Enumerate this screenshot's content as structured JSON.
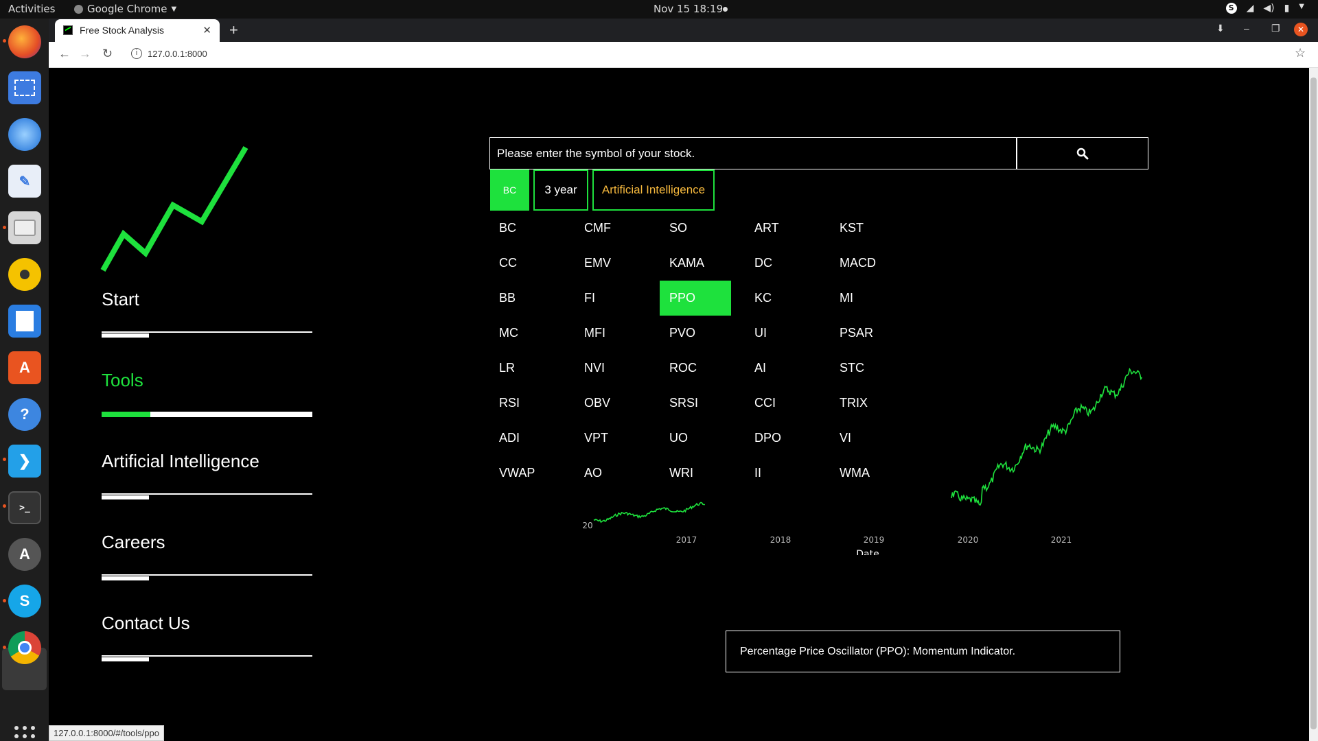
{
  "os": {
    "activities": "Activities",
    "app_name": "Google Chrome",
    "clock": "Nov 15  18:19"
  },
  "browser": {
    "tab_title": "Free Stock Analysis",
    "url": "127.0.0.1:8000",
    "status_url": "127.0.0.1:8000/#/tools/ppo"
  },
  "sidebar": {
    "items": [
      {
        "label": "Start"
      },
      {
        "label": "Tools"
      },
      {
        "label": "Artificial Intelligence"
      },
      {
        "label": "Careers"
      },
      {
        "label": "Contact Us"
      }
    ],
    "active_index": 1,
    "active_progress": 0.23
  },
  "search": {
    "value": "Please enter the symbol of your stock."
  },
  "chips": {
    "symbol": "BC",
    "period": "3 year",
    "mode": "Artificial Intelligence"
  },
  "tools": [
    [
      "BC",
      "CMF",
      "SO",
      "ART",
      "KST"
    ],
    [
      "CC",
      "EMV",
      "KAMA",
      "DC",
      "MACD"
    ],
    [
      "BB",
      "FI",
      "PPO",
      "KC",
      "MI"
    ],
    [
      "MC",
      "MFI",
      "PVO",
      "UI",
      "PSAR"
    ],
    [
      "LR",
      "NVI",
      "ROC",
      "AI",
      "STC"
    ],
    [
      "RSI",
      "OBV",
      "SRSI",
      "CCI",
      "TRIX"
    ],
    [
      "ADI",
      "VPT",
      "UO",
      "DPO",
      "VI"
    ],
    [
      "VWAP",
      "AO",
      "WRI",
      "II",
      "WMA"
    ]
  ],
  "selected_tool": "PPO",
  "chart_data": {
    "type": "line",
    "xlabel": "Date",
    "x_ticks": [
      "2017",
      "2018",
      "2019",
      "2020",
      "2021"
    ],
    "partial_y_tick": "20",
    "line_color": "#1ee13d"
  },
  "description": "Percentage Price Oscillator (PPO): Momentum Indicator.",
  "colors": {
    "accent": "#1ee13d",
    "highlight": "#f5b83d",
    "background": "#000000"
  }
}
